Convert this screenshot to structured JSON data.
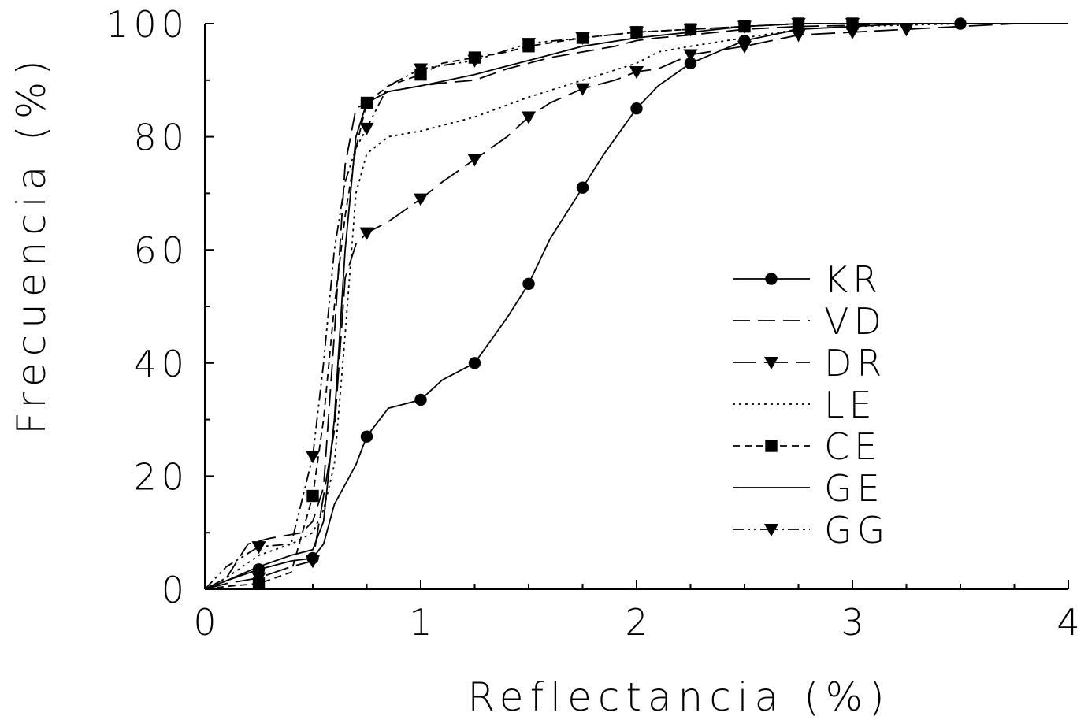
{
  "chart_data": {
    "type": "line",
    "title": "",
    "xlabel": "Reflectancia (%)",
    "ylabel": "Frecuencia (%)",
    "xlim": [
      0,
      4
    ],
    "ylim": [
      0,
      100
    ],
    "xticks": [
      "0",
      "1",
      "2",
      "3",
      "4"
    ],
    "yticks": [
      "0",
      "20",
      "40",
      "60",
      "80",
      "100"
    ],
    "grid": false,
    "legend_position": "right",
    "series": [
      {
        "name": "KR",
        "line_style": "solid",
        "marker": "circle",
        "x": [
          0,
          0.1,
          0.25,
          0.4,
          0.5,
          0.55,
          0.6,
          0.7,
          0.75,
          0.85,
          1.0,
          1.1,
          1.25,
          1.4,
          1.5,
          1.6,
          1.75,
          1.85,
          2.0,
          2.1,
          2.25,
          2.5,
          2.75,
          3.0,
          3.25,
          3.5,
          3.75,
          4.0
        ],
        "y": [
          0,
          1.5,
          3.5,
          5,
          5.5,
          8,
          15,
          22,
          27,
          32,
          33.5,
          37,
          40,
          48,
          54,
          62,
          71,
          77,
          85,
          89,
          93,
          97,
          99,
          99.5,
          100,
          100,
          100,
          100
        ],
        "markers_x": [
          0.25,
          0.5,
          0.75,
          1.0,
          1.25,
          1.5,
          1.75,
          2.0,
          2.25,
          2.5,
          3.5
        ],
        "markers_y": [
          3.5,
          5.5,
          27,
          33.5,
          40,
          54,
          71,
          85,
          93,
          97,
          100
        ]
      },
      {
        "name": "VD",
        "line_style": "dash",
        "marker": "none",
        "x": [
          0,
          0.1,
          0.2,
          0.3,
          0.45,
          0.5,
          0.55,
          0.6,
          0.65,
          0.7,
          0.75,
          0.85,
          1.0,
          1.1,
          1.25,
          1.4,
          1.5,
          1.6,
          1.75,
          1.9,
          2.0,
          2.1,
          2.25,
          2.5,
          2.75,
          3.0,
          3.25,
          3.5,
          4.0
        ],
        "y": [
          0,
          2,
          8,
          9,
          10,
          12,
          18,
          45,
          75,
          85,
          86,
          88,
          89,
          89.5,
          90,
          92,
          93,
          94,
          95,
          96,
          97,
          97.5,
          98,
          99,
          99.5,
          99.7,
          100,
          100,
          100
        ]
      },
      {
        "name": "DR",
        "line_style": "longdash",
        "marker": "triangle-down",
        "x": [
          0,
          0.1,
          0.25,
          0.4,
          0.5,
          0.6,
          0.65,
          0.7,
          0.75,
          0.85,
          1.0,
          1.1,
          1.25,
          1.4,
          1.5,
          1.6,
          1.75,
          1.9,
          2.0,
          2.1,
          2.25,
          2.5,
          2.75,
          3.0,
          3.25,
          3.5,
          3.75,
          4.0
        ],
        "y": [
          0,
          1,
          2,
          4,
          5,
          28,
          55,
          61,
          63,
          65,
          69,
          72,
          76,
          80,
          83.5,
          86,
          88.5,
          90,
          91.5,
          92,
          94.5,
          96,
          98,
          98.5,
          99,
          99.5,
          100,
          100
        ],
        "markers_x": [
          0.25,
          0.5,
          0.75,
          1.0,
          1.25,
          1.5,
          1.75,
          2.0,
          2.25,
          2.5,
          2.75,
          3.0,
          3.25
        ],
        "markers_y": [
          2,
          5,
          63,
          69,
          76,
          83.5,
          88.5,
          91.5,
          94.5,
          96,
          98,
          98.5,
          99
        ]
      },
      {
        "name": "LE",
        "line_style": "dot",
        "marker": "none",
        "x": [
          0,
          0.1,
          0.25,
          0.4,
          0.5,
          0.55,
          0.6,
          0.65,
          0.7,
          0.75,
          0.85,
          1.0,
          1.25,
          1.5,
          1.75,
          2.0,
          2.1,
          2.25,
          2.5,
          2.75,
          3.0,
          3.5,
          4.0
        ],
        "y": [
          0,
          2,
          6,
          8,
          10,
          14,
          22,
          45,
          70,
          77,
          80,
          81,
          83.5,
          87,
          90,
          93,
          95,
          96,
          97.5,
          99,
          99.5,
          100,
          100
        ]
      },
      {
        "name": "CE",
        "line_style": "shortdash",
        "marker": "square",
        "x": [
          0,
          0.1,
          0.25,
          0.4,
          0.5,
          0.55,
          0.6,
          0.65,
          0.7,
          0.75,
          0.85,
          1.0,
          1.1,
          1.25,
          1.4,
          1.5,
          1.75,
          2.0,
          2.25,
          2.5,
          2.75,
          3.0,
          3.25,
          3.5,
          3.75,
          4.0
        ],
        "y": [
          0,
          0.5,
          1,
          3,
          16.5,
          30,
          50,
          66,
          78,
          86,
          89,
          91,
          93,
          94,
          95,
          96,
          97.5,
          98.5,
          99,
          99.5,
          100,
          100,
          100,
          100,
          100,
          100
        ],
        "markers_x": [
          0.25,
          0.5,
          0.75,
          1.0,
          1.25,
          1.5,
          1.75,
          2.0,
          2.25,
          2.5,
          2.75,
          3.0
        ],
        "markers_y": [
          1,
          16.5,
          86,
          91,
          94,
          96,
          97.5,
          98.5,
          99,
          99.5,
          100,
          100
        ]
      },
      {
        "name": "GE",
        "line_style": "solid",
        "marker": "none",
        "x": [
          0,
          0.1,
          0.25,
          0.4,
          0.5,
          0.55,
          0.6,
          0.65,
          0.7,
          0.75,
          0.85,
          1.0,
          1.25,
          1.5,
          1.75,
          2.0,
          2.25,
          2.5,
          2.75,
          3.0,
          3.5,
          4.0
        ],
        "y": [
          0,
          1.5,
          4,
          6,
          7,
          12,
          30,
          60,
          80,
          86,
          88,
          89,
          91,
          93.5,
          96,
          97.5,
          98.5,
          99.5,
          100,
          100,
          100,
          100
        ]
      },
      {
        "name": "GG",
        "line_style": "dashdotdot",
        "marker": "triangle-down",
        "x": [
          0,
          0.1,
          0.25,
          0.4,
          0.5,
          0.55,
          0.6,
          0.65,
          0.7,
          0.75,
          0.85,
          1.0,
          1.25,
          1.5,
          1.75,
          2.0,
          2.25,
          2.5,
          2.75,
          3.0,
          3.5,
          4.0
        ],
        "y": [
          0,
          4,
          7.5,
          8,
          23.5,
          40,
          60,
          72,
          78,
          81.5,
          89,
          92,
          93.5,
          96.5,
          97.5,
          98.5,
          99,
          99.5,
          100,
          100,
          100,
          100
        ],
        "markers_x": [
          0.25,
          0.5,
          0.75,
          1.0,
          1.25,
          1.5,
          1.75,
          2.0,
          2.25,
          2.5,
          2.75,
          3.0
        ],
        "markers_y": [
          7.5,
          23.5,
          81.5,
          92,
          93.5,
          96.5,
          97.5,
          98.5,
          99,
          99.5,
          100,
          100
        ]
      }
    ]
  }
}
